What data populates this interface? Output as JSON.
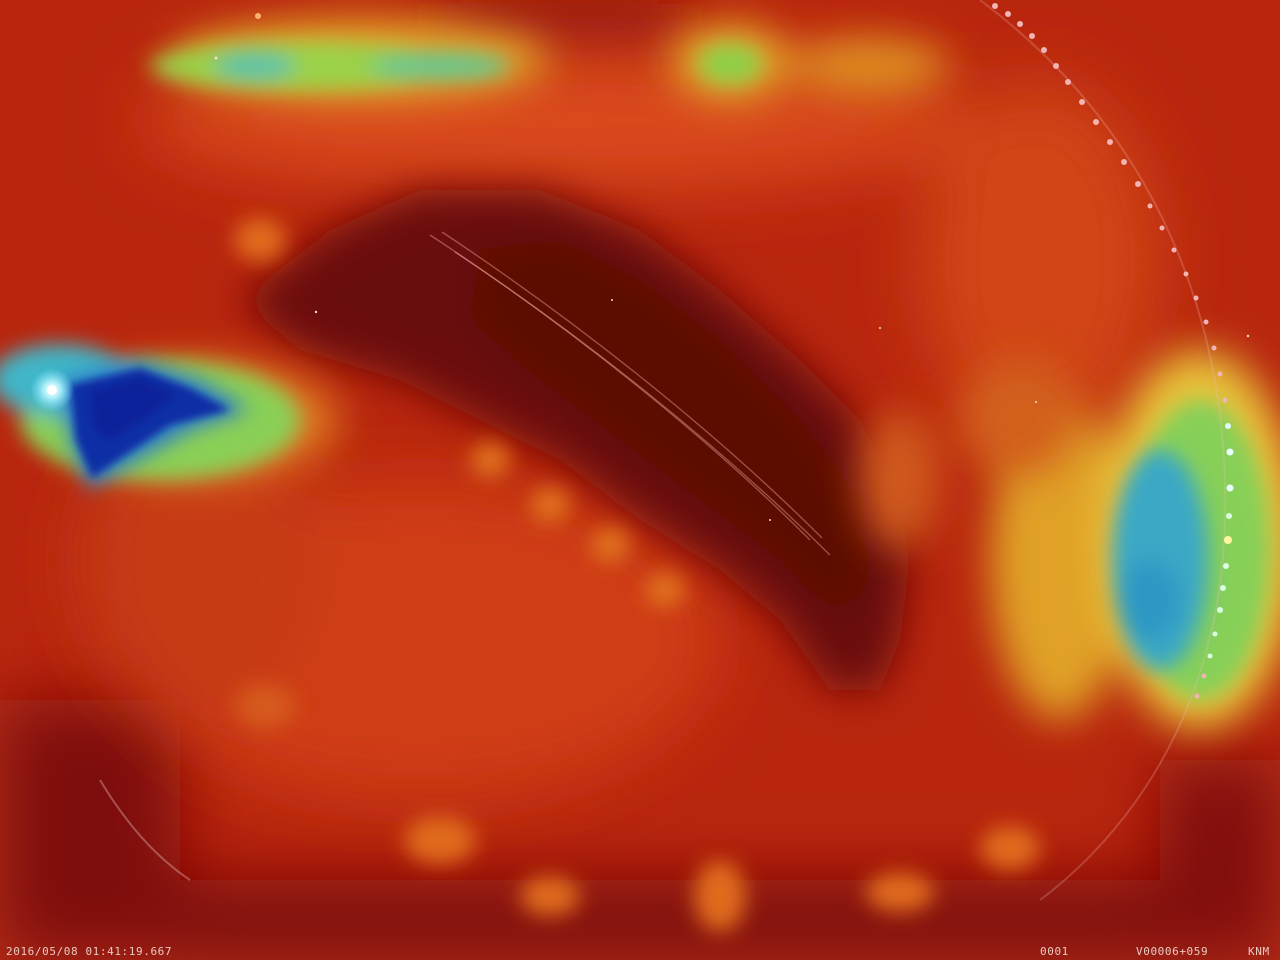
{
  "overlay": {
    "timestamp": "2016/05/08 01:41:19.667",
    "frame_counter": "0001",
    "sequence_id": "V00006+059",
    "station_code": "KNM"
  },
  "palette": {
    "dark_red": "#6e0c08",
    "red": "#c4280f",
    "orange": "#e0521a",
    "yellow": "#d9d236",
    "green": "#8fd84a",
    "cyan": "#3fb6c8",
    "blue": "#0c2a9a",
    "meteor_trail": "#f2b0b0"
  }
}
